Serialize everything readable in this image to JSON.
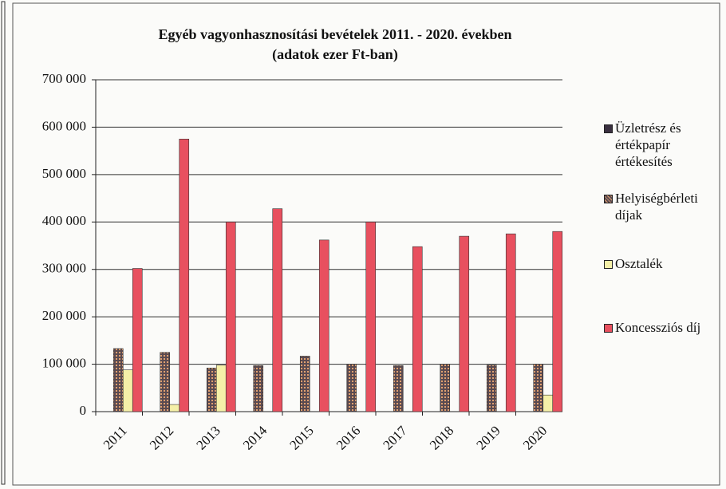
{
  "chart_data": {
    "type": "bar",
    "title": "Egyéb vagyonhasznosítási bevételek 2011. - 2020. években",
    "subtitle": "(adatok ezer Ft-ban)",
    "categories": [
      "2011",
      "2012",
      "2013",
      "2014",
      "2015",
      "2016",
      "2017",
      "2018",
      "2019",
      "2020"
    ],
    "series": [
      {
        "name": "Üzletrész és értékpapír értékesítés",
        "color": "#3a3040",
        "values": [
          0,
          0,
          0,
          0,
          0,
          0,
          0,
          0,
          0,
          0
        ]
      },
      {
        "name": "Helyiségbérleti díjak",
        "color": "#5a4a50",
        "values": [
          133000,
          125000,
          92000,
          97000,
          117000,
          100000,
          97000,
          100000,
          98000,
          100000
        ]
      },
      {
        "name": "Osztalék",
        "color": "#f5f0a8",
        "values": [
          88000,
          15000,
          98000,
          0,
          0,
          0,
          0,
          0,
          0,
          35000
        ]
      },
      {
        "name": "Koncessziós díj",
        "color": "#e8505f",
        "values": [
          302000,
          575000,
          400000,
          428000,
          362000,
          400000,
          348000,
          370000,
          375000,
          380000
        ]
      }
    ],
    "ylim": [
      0,
      700000
    ],
    "yticks": [
      0,
      {
        "value": 100000,
        "label": "100 000"
      },
      {
        "value": 200000,
        "label": "200 000"
      },
      {
        "value": 300000,
        "label": "300 000"
      },
      {
        "value": 400000,
        "label": "400 000"
      },
      {
        "value": 500000,
        "label": "500 000"
      },
      {
        "value": 600000,
        "label": "600 000"
      },
      {
        "value": 700000,
        "label": "700 000"
      }
    ],
    "grid": true,
    "legend": "right"
  }
}
